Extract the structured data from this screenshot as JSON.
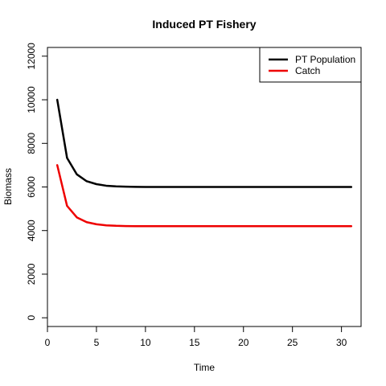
{
  "chart_data": {
    "type": "line",
    "title": "Induced PT Fishery",
    "xlabel": "Time",
    "ylabel": "Biomass",
    "xlim": [
      0,
      32
    ],
    "ylim": [
      -400,
      12400
    ],
    "xticks": [
      0,
      5,
      10,
      15,
      20,
      25,
      30
    ],
    "yticks": [
      0,
      2000,
      4000,
      6000,
      8000,
      10000,
      12000
    ],
    "grid": false,
    "legend_position": "top-right",
    "x": [
      1,
      2,
      3,
      4,
      5,
      6,
      7,
      8,
      9,
      10,
      11,
      12,
      13,
      14,
      15,
      16,
      17,
      18,
      19,
      20,
      21,
      22,
      23,
      24,
      25,
      26,
      27,
      28,
      29,
      30,
      31
    ],
    "series": [
      {
        "name": "PT Population",
        "color": "#000000",
        "values": [
          10000,
          7333,
          6578,
          6264,
          6129,
          6057,
          6027,
          6012,
          6005,
          6002,
          6001,
          6000,
          6000,
          6000,
          6000,
          6000,
          6000,
          6000,
          6000,
          6000,
          6000,
          6000,
          6000,
          6000,
          6000,
          6000,
          6000,
          6000,
          6000,
          6000,
          6000
        ]
      },
      {
        "name": "Catch",
        "color": "#ee0000",
        "values": [
          7000,
          5133,
          4605,
          4385,
          4290,
          4240,
          4219,
          4208,
          4204,
          4201,
          4201,
          4200,
          4200,
          4200,
          4200,
          4200,
          4200,
          4200,
          4200,
          4200,
          4200,
          4200,
          4200,
          4200,
          4200,
          4200,
          4200,
          4200,
          4200,
          4200,
          4200
        ]
      }
    ]
  }
}
